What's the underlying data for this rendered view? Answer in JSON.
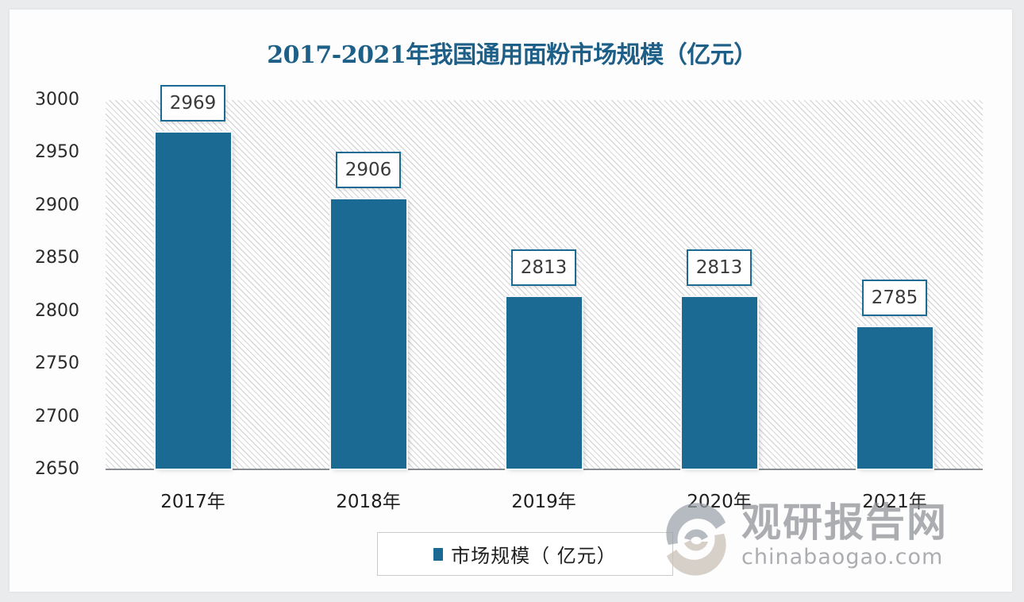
{
  "title": "2017-2021年我国通用面粉市场规模（亿元）",
  "y_axis": {
    "ticks": [
      "3000",
      "2950",
      "2900",
      "2850",
      "2800",
      "2750",
      "2700",
      "2650"
    ]
  },
  "x_axis": {
    "ticks": [
      "2017年",
      "2018年",
      "2019年",
      "2020年",
      "2021年"
    ]
  },
  "bars": [
    {
      "category": "2017年",
      "value": 2969,
      "label": "2969"
    },
    {
      "category": "2018年",
      "value": 2906,
      "label": "2906"
    },
    {
      "category": "2019年",
      "value": 2813,
      "label": "2813"
    },
    {
      "category": "2020年",
      "value": 2813,
      "label": "2813"
    },
    {
      "category": "2021年",
      "value": 2785,
      "label": "2785"
    }
  ],
  "legend": {
    "label": "市场规模（ 亿元）",
    "color": "#1b6a94"
  },
  "watermark": {
    "name": "观研报告网",
    "domain": "chinabaogao.com"
  },
  "colors": {
    "bar": "#1b6a94",
    "title": "#1d5f86"
  },
  "chart_data": {
    "type": "bar",
    "title": "2017-2021年我国通用面粉市场规模（亿元）",
    "categories": [
      "2017年",
      "2018年",
      "2019年",
      "2020年",
      "2021年"
    ],
    "series": [
      {
        "name": "市场规模（亿元）",
        "values": [
          2969,
          2906,
          2813,
          2813,
          2785
        ]
      }
    ],
    "xlabel": "",
    "ylabel": "",
    "ylim": [
      2650,
      3000
    ],
    "yticks": [
      2650,
      2700,
      2750,
      2800,
      2850,
      2900,
      2950,
      3000
    ],
    "grid": false,
    "legend_position": "bottom",
    "data_labels": true
  }
}
